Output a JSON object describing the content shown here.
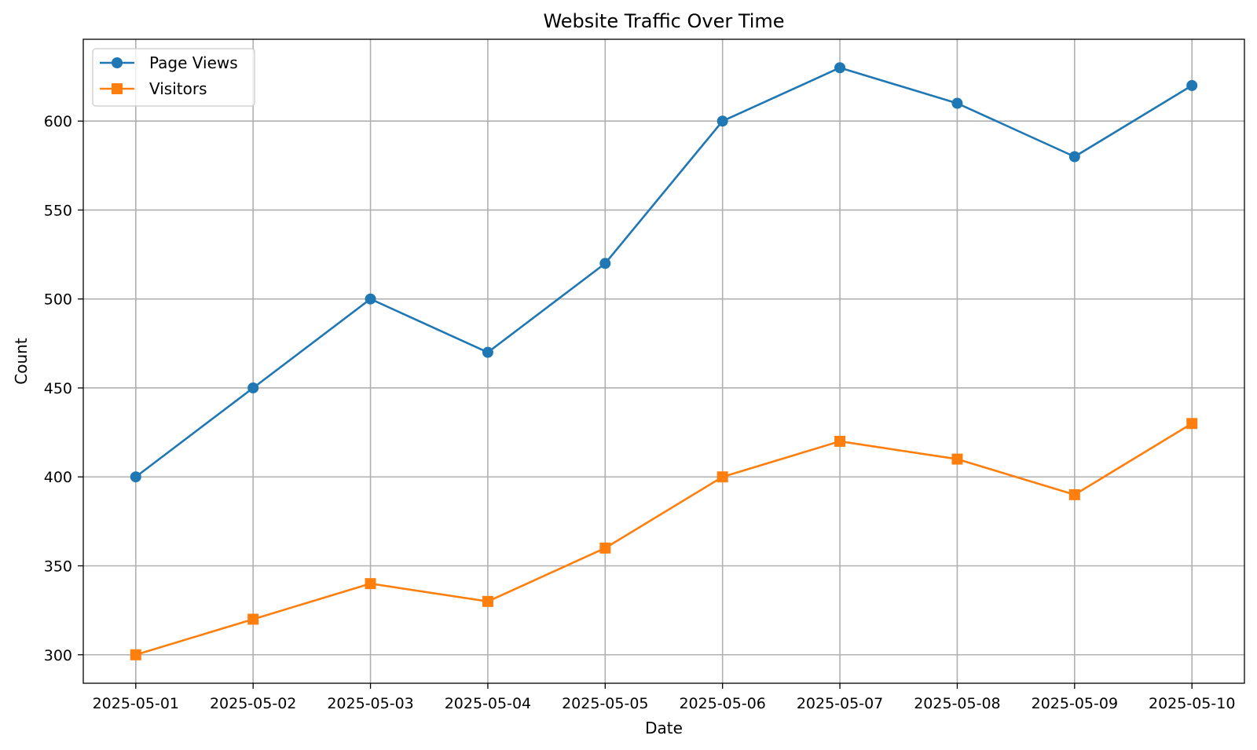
{
  "chart_data": {
    "type": "line",
    "title": "Website Traffic Over Time",
    "xlabel": "Date",
    "ylabel": "Count",
    "categories": [
      "2025-05-01",
      "2025-05-02",
      "2025-05-03",
      "2025-05-04",
      "2025-05-05",
      "2025-05-06",
      "2025-05-07",
      "2025-05-08",
      "2025-05-09",
      "2025-05-10"
    ],
    "ylim": [
      284,
      646
    ],
    "yticks": [
      300,
      350,
      400,
      450,
      500,
      550,
      600
    ],
    "grid": true,
    "legend_position": "top-left",
    "series": [
      {
        "name": "Page Views",
        "color": "#1f77b4",
        "marker": "circle",
        "values": [
          400,
          450,
          500,
          470,
          520,
          600,
          630,
          610,
          580,
          620
        ]
      },
      {
        "name": "Visitors",
        "color": "#ff7f0e",
        "marker": "square",
        "values": [
          300,
          320,
          340,
          330,
          360,
          400,
          420,
          410,
          390,
          430
        ]
      }
    ]
  }
}
